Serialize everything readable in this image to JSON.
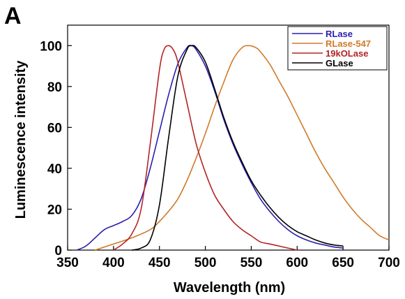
{
  "panel_label": "A",
  "chart_data": {
    "type": "line",
    "xlabel": "Wavelength (nm)",
    "ylabel": "Luminescence intensity",
    "xlim": [
      350,
      700
    ],
    "ylim": [
      0,
      110
    ],
    "xticks": [
      350,
      400,
      450,
      500,
      550,
      600,
      650,
      700
    ],
    "yticks": [
      0,
      20,
      40,
      60,
      80,
      100
    ],
    "grid": false,
    "legend_position": "top-right",
    "series": [
      {
        "name": "RLase",
        "color": "#2b1fb0",
        "x": [
          360,
          370,
          380,
          390,
          400,
          410,
          420,
          430,
          440,
          450,
          460,
          470,
          480,
          485,
          490,
          500,
          510,
          520,
          530,
          540,
          550,
          560,
          570,
          580,
          590,
          600,
          610,
          620,
          630,
          640,
          650
        ],
        "y": [
          0,
          2,
          6,
          10,
          12,
          14,
          17,
          25,
          40,
          58,
          76,
          91,
          99,
          100,
          98,
          90,
          78,
          64,
          52,
          42,
          33,
          25,
          19,
          14,
          10,
          7,
          5,
          3.5,
          2.5,
          1.5,
          1
        ]
      },
      {
        "name": "RLase-547",
        "color": "#d07a2a",
        "x": [
          380,
          400,
          420,
          440,
          450,
          460,
          470,
          480,
          490,
          500,
          510,
          520,
          530,
          540,
          547,
          555,
          560,
          570,
          580,
          590,
          600,
          610,
          620,
          630,
          640,
          650,
          660,
          670,
          680,
          690,
          700
        ],
        "y": [
          0,
          3,
          6,
          10,
          14,
          19,
          25,
          34,
          45,
          57,
          70,
          82,
          93,
          99,
          100,
          99,
          97,
          91,
          83,
          75,
          66,
          57,
          48,
          40,
          33,
          26,
          20,
          15,
          11,
          7,
          5
        ]
      },
      {
        "name": "19kOLase",
        "color": "#b32424",
        "x": [
          400,
          410,
          420,
          430,
          440,
          450,
          455,
          460,
          465,
          470,
          480,
          490,
          500,
          510,
          520,
          530,
          540,
          550,
          560,
          570,
          580,
          590,
          600
        ],
        "y": [
          0,
          3,
          8,
          20,
          52,
          88,
          98,
          100,
          98,
          92,
          72,
          52,
          38,
          27,
          20,
          14,
          10,
          7,
          4,
          3,
          2,
          1,
          0
        ]
      },
      {
        "name": "GLase",
        "color": "#000000",
        "x": [
          420,
          430,
          440,
          450,
          460,
          470,
          480,
          485,
          490,
          500,
          510,
          520,
          530,
          540,
          550,
          560,
          570,
          580,
          590,
          600,
          610,
          620,
          630,
          640,
          650
        ],
        "y": [
          0,
          1,
          5,
          22,
          55,
          85,
          98,
          100,
          99,
          92,
          79,
          65,
          53,
          43,
          34,
          27,
          21,
          16,
          12,
          9,
          7,
          5,
          3.5,
          2.5,
          2
        ]
      }
    ]
  }
}
